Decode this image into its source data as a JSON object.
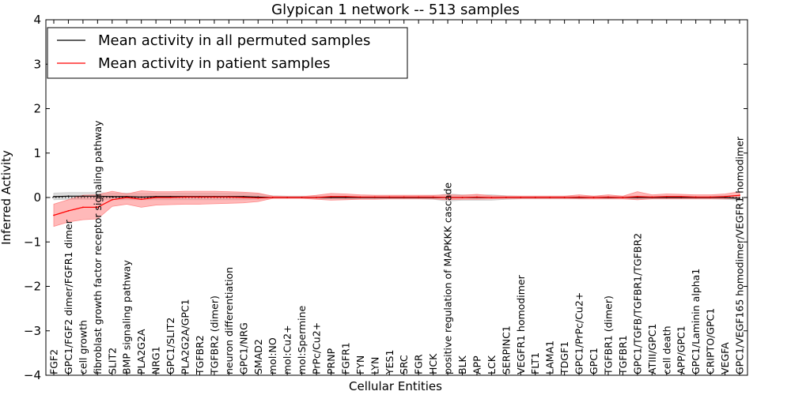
{
  "chart_data": {
    "type": "line",
    "title": "Glypican 1 network -- 513 samples",
    "xlabel": "Cellular Entities",
    "ylabel": "Inferred Activity",
    "ylim": [
      -4,
      4
    ],
    "yticks": [
      -4,
      -3,
      -2,
      -1,
      0,
      1,
      2,
      3,
      4
    ],
    "ytick_labels": [
      "−4",
      "−3",
      "−2",
      "−1",
      "0",
      "1",
      "2",
      "3",
      "4"
    ],
    "legend_position": "top-left",
    "categories": [
      "FGF2",
      "GPC1/FGF2 dimer/FGFR1 dimer",
      "cell growth",
      "fibroblast growth factor receptor signaling pathway",
      "SLIT2",
      "BMP signaling pathway",
      "PLA2G2A",
      "NRG1",
      "GPC1/SLIT2",
      "PLA2G2A/GPC1",
      "TGFBR2",
      "TGFBR2 (dimer)",
      "neuron differentiation",
      "GPC1/NRG",
      "SMAD2",
      "mol:NO",
      "mol:Cu2+",
      "mol:Spermine",
      "PrPc/Cu2+",
      "PRNP",
      "FGFR1",
      "FYN",
      "LYN",
      "YES1",
      "SRC",
      "FGR",
      "HCK",
      "positive regulation of MAPKKK cascade",
      "BLK",
      "APP",
      "LCK",
      "SERPINC1",
      "VEGFR1 homodimer",
      "FLT1",
      "LAMA1",
      "TDGF1",
      "GPC1/PrPc/Cu2+",
      "GPC1",
      "TGFBR1 (dimer)",
      "TGFBR1",
      "GPC1/TGFB/TGFBR1/TGFBR2",
      "ATIII/GPC1",
      "cell death",
      "APP/GPC1",
      "GPC1/Laminin alpha1",
      "CRIPTO/GPC1",
      "VEGFA",
      "GPC1/VEGF165 homodimer/VEGFR1 homodimer"
    ],
    "series": [
      {
        "name": "Mean activity in all permuted samples",
        "color": "#000000",
        "values": [
          0.02,
          0.03,
          0.03,
          0.03,
          0.02,
          0.02,
          0.01,
          0.02,
          0.02,
          0.02,
          0.02,
          0.02,
          0.02,
          0.02,
          0.01,
          0.0,
          0.0,
          0.0,
          0.0,
          0.0,
          0.0,
          0.0,
          0.0,
          0.0,
          0.0,
          0.0,
          0.0,
          0.0,
          0.0,
          0.0,
          0.0,
          0.0,
          0.0,
          0.0,
          0.0,
          0.0,
          0.0,
          0.0,
          0.0,
          0.0,
          0.0,
          0.0,
          0.0,
          0.0,
          0.0,
          0.0,
          0.0,
          -0.02
        ],
        "band_lower": [
          -0.05,
          -0.04,
          -0.04,
          -0.05,
          -0.05,
          -0.05,
          -0.05,
          -0.05,
          -0.05,
          -0.05,
          -0.05,
          -0.05,
          -0.05,
          -0.05,
          -0.04,
          -0.02,
          -0.02,
          -0.02,
          -0.03,
          -0.03,
          -0.03,
          -0.03,
          -0.03,
          -0.03,
          -0.03,
          -0.03,
          -0.04,
          -0.08,
          -0.06,
          -0.06,
          -0.06,
          -0.04,
          -0.03,
          -0.03,
          -0.03,
          -0.03,
          -0.03,
          -0.03,
          -0.03,
          -0.03,
          -0.03,
          -0.03,
          -0.03,
          -0.03,
          -0.03,
          -0.03,
          -0.04,
          -0.06
        ],
        "band_upper": [
          0.1,
          0.11,
          0.11,
          0.11,
          0.1,
          0.1,
          0.09,
          0.1,
          0.1,
          0.1,
          0.1,
          0.1,
          0.1,
          0.1,
          0.08,
          0.04,
          0.03,
          0.03,
          0.03,
          0.03,
          0.03,
          0.03,
          0.03,
          0.03,
          0.03,
          0.03,
          0.04,
          0.08,
          0.06,
          0.06,
          0.06,
          0.04,
          0.03,
          0.03,
          0.03,
          0.03,
          0.03,
          0.03,
          0.03,
          0.03,
          0.03,
          0.03,
          0.03,
          0.03,
          0.03,
          0.03,
          0.04,
          0.05
        ],
        "band_color": "#c8c8c8"
      },
      {
        "name": "Mean activity in patient samples",
        "color": "#ff0000",
        "values": [
          -0.4,
          -0.3,
          -0.22,
          -0.22,
          -0.05,
          0.0,
          -0.04,
          0.0,
          0.0,
          0.01,
          0.01,
          0.01,
          0.01,
          0.0,
          -0.01,
          0.0,
          0.0,
          0.0,
          0.0,
          0.02,
          0.02,
          0.01,
          0.01,
          0.01,
          0.01,
          0.01,
          0.01,
          0.0,
          0.0,
          0.01,
          0.0,
          0.0,
          0.0,
          0.0,
          0.0,
          0.0,
          0.01,
          0.0,
          0.01,
          0.0,
          0.02,
          0.01,
          0.02,
          0.02,
          0.01,
          0.01,
          0.02,
          0.05
        ],
        "band_lower": [
          -0.65,
          -0.55,
          -0.5,
          -0.48,
          -0.2,
          -0.15,
          -0.22,
          -0.17,
          -0.16,
          -0.15,
          -0.15,
          -0.14,
          -0.13,
          -0.12,
          -0.09,
          -0.02,
          -0.02,
          -0.02,
          -0.04,
          -0.06,
          -0.05,
          -0.04,
          -0.04,
          -0.03,
          -0.03,
          -0.03,
          -0.03,
          -0.05,
          -0.04,
          -0.04,
          -0.03,
          -0.02,
          -0.02,
          -0.02,
          -0.02,
          -0.02,
          -0.03,
          -0.03,
          -0.03,
          -0.03,
          -0.05,
          -0.03,
          -0.03,
          -0.03,
          -0.03,
          -0.03,
          -0.03,
          -0.01
        ],
        "band_upper": [
          -0.15,
          -0.05,
          0.05,
          0.06,
          0.14,
          0.08,
          0.15,
          0.13,
          0.13,
          0.14,
          0.14,
          0.14,
          0.13,
          0.12,
          0.1,
          0.03,
          0.02,
          0.02,
          0.05,
          0.09,
          0.08,
          0.06,
          0.05,
          0.05,
          0.05,
          0.05,
          0.05,
          0.06,
          0.05,
          0.07,
          0.04,
          0.03,
          0.03,
          0.03,
          0.03,
          0.03,
          0.06,
          0.03,
          0.06,
          0.03,
          0.13,
          0.06,
          0.08,
          0.07,
          0.06,
          0.06,
          0.08,
          0.13
        ],
        "band_color": "#ff8a8a"
      }
    ],
    "zero_reference": {
      "y": 0,
      "style": "dotted"
    }
  }
}
